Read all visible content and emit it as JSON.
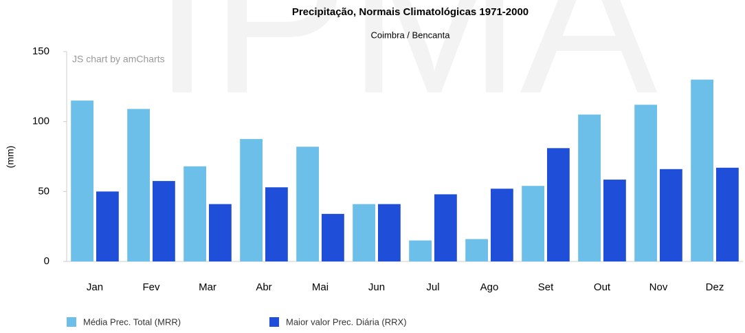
{
  "chart_data": {
    "type": "bar",
    "title": "Precipitação, Normais Climatológicas 1971-2000",
    "subtitle": "Coimbra / Bencanta",
    "credit": "JS chart by amCharts",
    "watermark": "IPMA",
    "y_label": "(mm)",
    "categories": [
      "Jan",
      "Fev",
      "Mar",
      "Abr",
      "Mai",
      "Jun",
      "Jul",
      "Ago",
      "Set",
      "Out",
      "Nov",
      "Dez"
    ],
    "series": [
      {
        "name": "Média Prec. Total (MRR)",
        "color": "#6cbfe8",
        "values": [
          115,
          109,
          68,
          87.5,
          82,
          41,
          15,
          16,
          54,
          105,
          112,
          130
        ]
      },
      {
        "name": "Maior valor Prec. Diária (RRX)",
        "color": "#1f4fd8",
        "values": [
          50,
          57.5,
          41,
          53,
          34,
          41,
          48,
          52,
          81,
          58.5,
          66,
          67
        ]
      }
    ],
    "ylim": [
      0,
      150
    ],
    "yticks": [
      0,
      50,
      100,
      150
    ],
    "grid": false,
    "legend": "bottom"
  }
}
